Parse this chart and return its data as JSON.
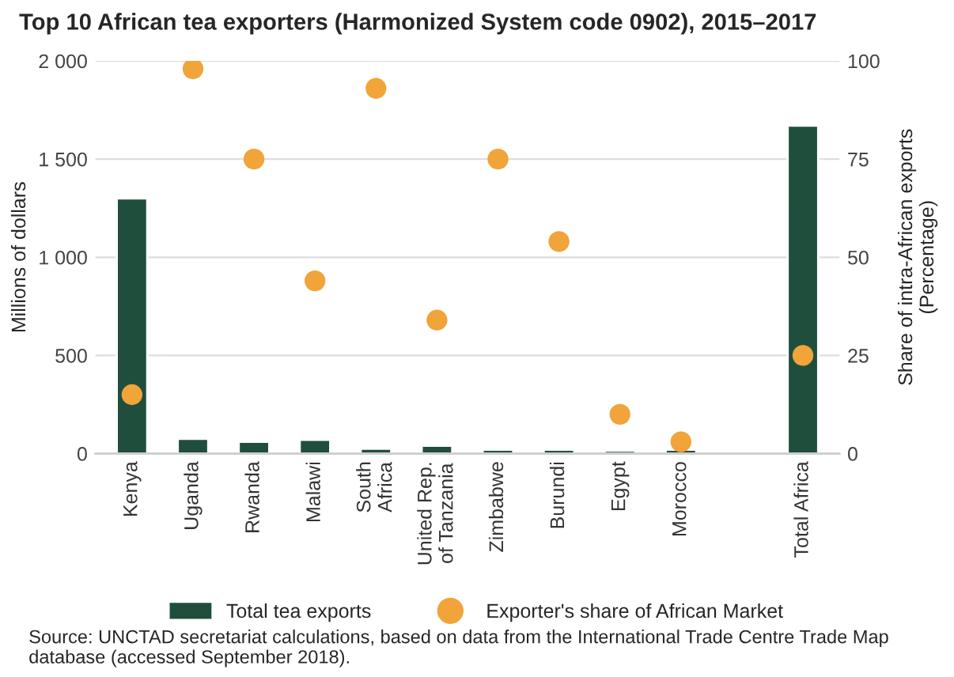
{
  "chart_data": {
    "type": "bar",
    "title": "Top 10 African tea exporters (Harmonized System code 0902), 2015–2017",
    "categories": [
      "Kenya",
      "Uganda",
      "Rwanda",
      "Malawi",
      "South\nAfrica",
      "United Rep.\nof Tanzania",
      "Zimbabwe",
      "Burundi",
      "Egypt",
      "Morocco",
      null,
      "Total Africa"
    ],
    "series": [
      {
        "name": "Total tea exports",
        "color": "#1f4e3d",
        "values": [
          1300,
          75,
          60,
          70,
          25,
          40,
          20,
          20,
          15,
          20,
          null,
          1670
        ]
      },
      {
        "name": "Exporter's share of African Market",
        "type": "scatter",
        "axis": "y2",
        "color": "#f0a43a",
        "values": [
          15,
          98,
          75,
          44,
          93,
          34,
          75,
          54,
          10,
          3,
          null,
          25
        ]
      }
    ],
    "ylabel": "Millions of dollars",
    "y2label": "Share of intra-African exports\n(Percentage)",
    "ylim": [
      0,
      2000
    ],
    "yticks": [
      0,
      {
        "value": 500,
        "label": "500"
      },
      {
        "value": 1000,
        "label": "1 000"
      },
      {
        "value": 1500,
        "label": "1 500"
      },
      {
        "value": 2000,
        "label": "2 000"
      }
    ],
    "y2lim": [
      0,
      100
    ],
    "y2ticks": [
      0,
      25,
      50,
      75,
      100
    ],
    "grid": "y",
    "legend": "bottom",
    "marker": "circle",
    "annotations": [
      "Source: UNCTAD secretariat calculations, based on data from the International Trade Centre Trade Map database (accessed September 2018)."
    ]
  }
}
